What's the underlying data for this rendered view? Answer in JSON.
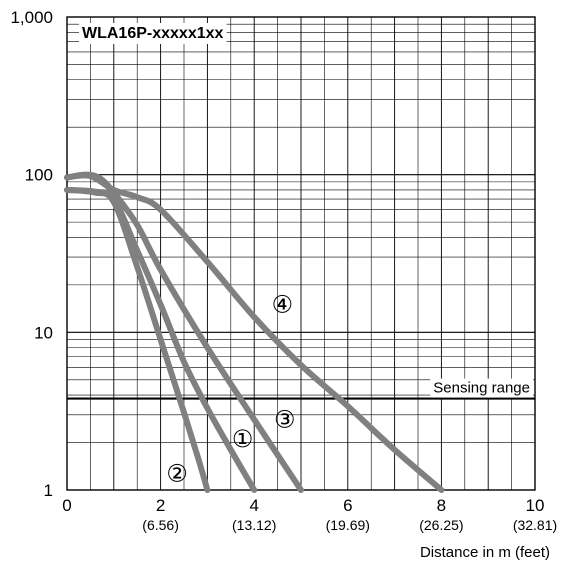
{
  "chart_data": {
    "type": "line",
    "title": "WLA16P-xxxxx1xx",
    "xlabel": "Distance in m (feet)",
    "ylabel": "",
    "xlim": [
      0,
      10
    ],
    "ylim": [
      1,
      1000
    ],
    "yscale": "log",
    "grid": true,
    "x_ticks": [
      {
        "value": 0,
        "label": "0",
        "sub": ""
      },
      {
        "value": 2,
        "label": "2",
        "sub": "(6.56)"
      },
      {
        "value": 4,
        "label": "4",
        "sub": "(13.12)"
      },
      {
        "value": 6,
        "label": "6",
        "sub": "(19.69)"
      },
      {
        "value": 8,
        "label": "8",
        "sub": "(26.25)"
      },
      {
        "value": 10,
        "label": "10",
        "sub": "(32.81)"
      }
    ],
    "y_ticks": [
      {
        "value": 1,
        "label": "1"
      },
      {
        "value": 10,
        "label": "10"
      },
      {
        "value": 100,
        "label": "100"
      },
      {
        "value": 1000,
        "label": "1,000"
      }
    ],
    "reference_line": {
      "y": 3.8,
      "label": "Sensing range"
    },
    "series": [
      {
        "name": "①",
        "label_at": {
          "x": 3.75,
          "y": 2.1
        },
        "points": [
          [
            0,
            80
          ],
          [
            0.6,
            78
          ],
          [
            1.0,
            70
          ],
          [
            1.5,
            33
          ],
          [
            2.0,
            15
          ],
          [
            2.5,
            6.5
          ],
          [
            3.0,
            3.3
          ],
          [
            3.5,
            1.8
          ],
          [
            4.0,
            1.0
          ]
        ]
      },
      {
        "name": "②",
        "label_at": {
          "x": 2.35,
          "y": 1.27
        },
        "points": [
          [
            0,
            80
          ],
          [
            0.6,
            77
          ],
          [
            1.0,
            67
          ],
          [
            1.5,
            26
          ],
          [
            2.0,
            9
          ],
          [
            2.5,
            3.1
          ],
          [
            2.8,
            1.6
          ],
          [
            3.0,
            1.0
          ]
        ]
      },
      {
        "name": "③",
        "label_at": {
          "x": 4.65,
          "y": 2.8
        },
        "points": [
          [
            0,
            96
          ],
          [
            0.4,
            100
          ],
          [
            0.7,
            95
          ],
          [
            1.0,
            77
          ],
          [
            1.5,
            48
          ],
          [
            2.0,
            25
          ],
          [
            3.0,
            8
          ],
          [
            4.0,
            2.8
          ],
          [
            5.0,
            1.0
          ]
        ]
      },
      {
        "name": "④",
        "label_at": {
          "x": 4.6,
          "y": 15
        },
        "points": [
          [
            0,
            96
          ],
          [
            0.5,
            98
          ],
          [
            1.0,
            80
          ],
          [
            1.5,
            72
          ],
          [
            2.0,
            60
          ],
          [
            3.0,
            28
          ],
          [
            4.0,
            12.5
          ],
          [
            5.0,
            6.2
          ],
          [
            6.0,
            3.4
          ],
          [
            7.0,
            1.8
          ],
          [
            8.0,
            1.0
          ]
        ]
      }
    ]
  }
}
